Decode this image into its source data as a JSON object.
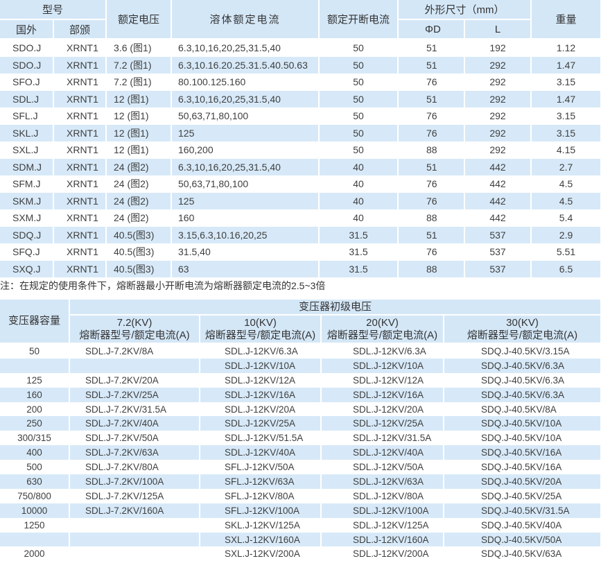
{
  "table1": {
    "headers": {
      "model": "型号",
      "foreign": "国外",
      "ministry": "部颁",
      "rated_voltage": "额定电压",
      "fuse_rated_current": "溶体额定电流",
      "rated_breaking_current": "额定开断电流",
      "dimensions": "外形尺寸（mm）",
      "diameter": "ΦD",
      "length": "L",
      "weight": "重量"
    },
    "rows": [
      [
        "SDO.J",
        "XRNT1",
        "3.6 (图1)",
        "6.3,10,16,20,25,31.5,40",
        "50",
        "51",
        "192",
        "1.12"
      ],
      [
        "SDO.J",
        "XRNT1",
        "7.2 (图1)",
        "6.3,10.16.20.25.31.5.40.50.63",
        "50",
        "51",
        "292",
        "1.47"
      ],
      [
        "SFO.J",
        "XRNT1",
        "7.2 (图1)",
        "80.100.125.160",
        "50",
        "76",
        "292",
        "3.15"
      ],
      [
        "SDL.J",
        "XRNT1",
        "12 (图1)",
        "6.3,10,16,20,25,31.5,40",
        "50",
        "51",
        "292",
        "1.47"
      ],
      [
        "SFL.J",
        "XRNT1",
        "12 (图1)",
        "50,63,71,80,100",
        "50",
        "76",
        "292",
        "3.15"
      ],
      [
        "SKL.J",
        "XRNT1",
        "12 (图1)",
        "125",
        "50",
        "76",
        "292",
        "3.15"
      ],
      [
        "SXL.J",
        "XRNT1",
        "12 (图1)",
        "160,200",
        "50",
        "88",
        "292",
        "4.15"
      ],
      [
        "SDM.J",
        "XRNT1",
        "24 (图2)",
        "6.3,10,16,20,25,31.5,40",
        "40",
        "51",
        "442",
        "2.7"
      ],
      [
        "SFM.J",
        "XRNT1",
        "24 (图2)",
        "50,63,71,80,100",
        "40",
        "76",
        "442",
        "4.5"
      ],
      [
        "SKM.J",
        "XRNT1",
        "24 (图2)",
        "125",
        "40",
        "76",
        "442",
        "4.5"
      ],
      [
        "SXM.J",
        "XRNT1",
        "24 (图2)",
        "160",
        "40",
        "88",
        "442",
        "5.4"
      ],
      [
        "SDQ.J",
        "XRNT1",
        "40.5(图3)",
        "3.15,6.3,10.16,20,25",
        "31.5",
        "51",
        "537",
        "2.9"
      ],
      [
        "SFQ.J",
        "XRNT1",
        "40.5(图3)",
        "31.5,40",
        "31.5",
        "76",
        "537",
        "5.51"
      ],
      [
        "SXQ.J",
        "XRNT1",
        "40.5(图3)",
        "63",
        "31.5",
        "88",
        "537",
        "6.5"
      ]
    ]
  },
  "note": "注：在规定的使用条件下，熔断器最小开断电流为熔断器额定电流的2.5~3倍",
  "table2": {
    "headers": {
      "capacity": "变压器容量",
      "primary_voltage": "变压器初级电压",
      "voltages": [
        "7.2(KV)",
        "10(KV)",
        "20(KV)",
        "30(KV)"
      ],
      "sub": "熔断器型号/额定电流(A)"
    },
    "rows": [
      [
        "50",
        "SDL.J-7.2KV/8A",
        "SDL.J-12KV/6.3A",
        "SDL.J-12KV/6.3A",
        "SDQ.J-40.5KV/3.15A"
      ],
      [
        "",
        "",
        "SDL.J-12KV/10A",
        "SDL.J-12KV/10A",
        "SDQ.J-40.5KV/6.3A"
      ],
      [
        "125",
        "SDL.J-7.2KV/20A",
        "SDL.J-12KV/12A",
        "SDL.J-12KV/12A",
        "SDQ.J-40.5KV/6.3A"
      ],
      [
        "160",
        "SDL.J-7.2KV/25A",
        "SDL.J-12KV/16A",
        "SDL.J-12KV/16A",
        "SDQ.J-40.5KV/6.3A"
      ],
      [
        "200",
        "SDL.J-7.2KV/31.5A",
        "SDL.J-12KV/20A",
        "SDL.J-12KV/20A",
        "SDQ.J-40.5KV/8A"
      ],
      [
        "250",
        "SDL.J-7.2KV/40A",
        "SDL.J-12KV/25A",
        "SDL.J-12KV/25A",
        "SDQ.J-40.5KV/10A"
      ],
      [
        "300/315",
        "SDL.J-7.2KV/50A",
        "SDL.J-12KV/51.5A",
        "SDL.J-12KV/31.5A",
        "SDQ.J-40.5KV/10A"
      ],
      [
        "400",
        "SDL.J-7.2KV/63A",
        "SDL.J-12KV/40A",
        "SDL.J-12KV/40A",
        "SDQ.J-40.5KV/16A"
      ],
      [
        "500",
        "SDL.J-7.2KV/80A",
        "SFL.J-12KV/50A",
        "SDL.J-12KV/50A",
        "SDQ.J-40.5KV/16A"
      ],
      [
        "630",
        "SDL.J-7.2KV/100A",
        "SFL.J-12KV/63A",
        "SDL.J-12KV/63A",
        "SDQ.J-40.5KV/20A"
      ],
      [
        "750/800",
        "SDL.J-7.2KV/125A",
        "SFL.J-12KV/80A",
        "SDL.J-12KV/80A",
        "SDQ.J-40.5KV/25A"
      ],
      [
        "10000",
        "SDL.J-7.2KV/160A",
        "SFL.J-12KV/100A",
        "SDL.J-12KV/100A",
        "SDQ.J-40.5KV/31.5A"
      ],
      [
        "1250",
        "",
        "SKL.J-12KV/125A",
        "SDL.J-12KV/125A",
        "SDQ.J-40.5KV/40A"
      ],
      [
        "",
        "",
        "SXL.J-12KV/160A",
        "SDL.J-12KV/160A",
        "SDQ.J-40.5KV/50A"
      ],
      [
        "2000",
        "",
        "SXL.J-12KV/200A",
        "SDL.J-12KV/200A",
        "SDQ.J-40.5KV/63A"
      ]
    ]
  },
  "colors": {
    "header_bg": "#d4e7f7",
    "stripe_bg": "#d7e9f8",
    "text": "#3e3e3e"
  }
}
